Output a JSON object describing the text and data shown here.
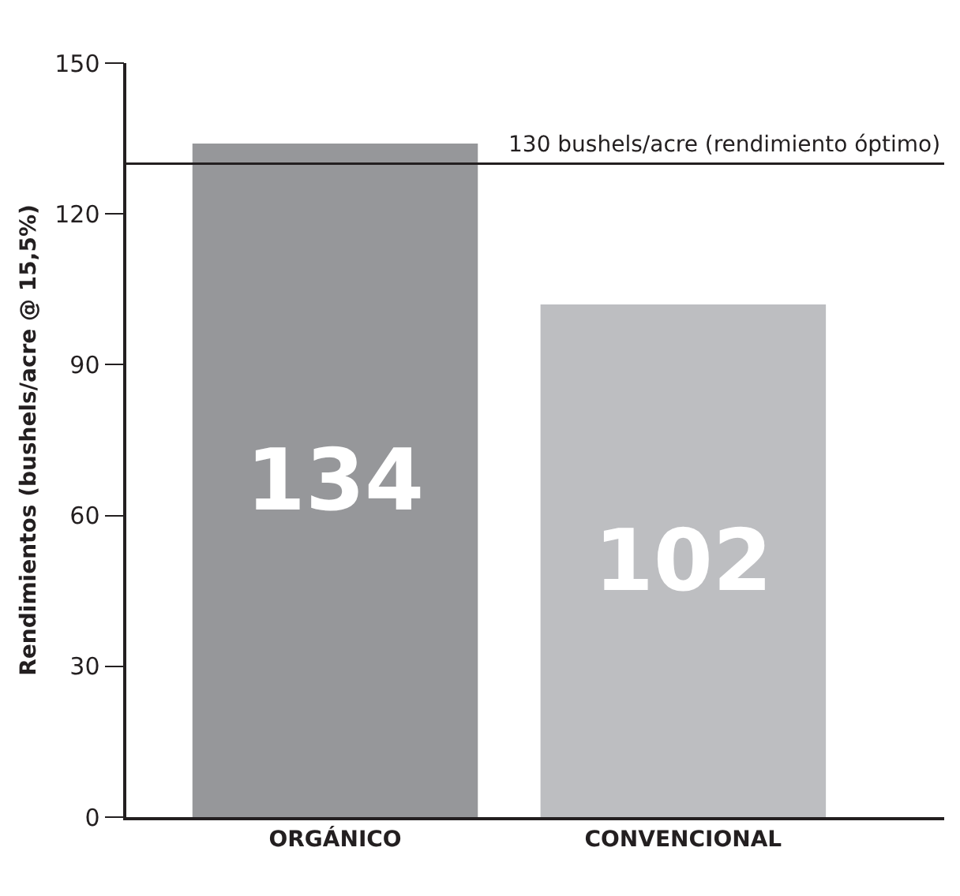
{
  "chart_data": {
    "type": "bar",
    "ylabel": "Rendimientos (bushels/acre @ 15,5%)",
    "categories": [
      "ORGÁNICO",
      "CONVENCIONAL"
    ],
    "values": [
      134,
      102
    ],
    "colors": [
      "#96979a",
      "#bdbec1"
    ],
    "ylim": [
      0,
      150
    ],
    "yticks": [
      0,
      30,
      60,
      90,
      120,
      150
    ],
    "data_labels": true,
    "ref_lines": [
      {
        "axis": "y",
        "value": 130,
        "label": "130 bushels/acre (rendimiento óptimo)",
        "color": "#231f20"
      }
    ]
  }
}
